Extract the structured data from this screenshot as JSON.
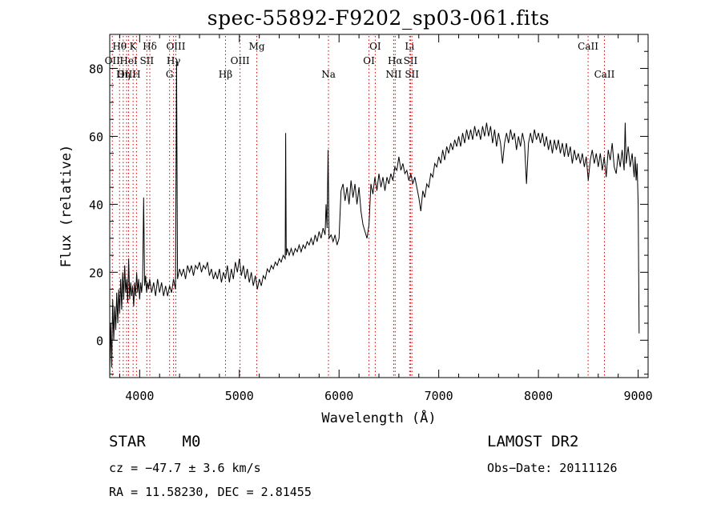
{
  "chart_data": {
    "type": "line",
    "title": "spec-55892-F9202_sp03-061.fits",
    "xlabel": "Wavelength (Å)",
    "ylabel": "Flux (relative)",
    "xlim": [
      3700,
      9100
    ],
    "ylim": [
      -11,
      90
    ],
    "xticks": [
      4000,
      5000,
      6000,
      7000,
      8000,
      9000
    ],
    "yticks": [
      0,
      20,
      40,
      60,
      80
    ],
    "grid": false,
    "line_color": "#000000",
    "marker_color": "#d00000",
    "series": [
      {
        "points": [
          [
            3700,
            -10
          ],
          [
            3710,
            5
          ],
          [
            3720,
            -8
          ],
          [
            3730,
            12
          ],
          [
            3740,
            0
          ],
          [
            3750,
            10
          ],
          [
            3760,
            3
          ],
          [
            3770,
            14
          ],
          [
            3780,
            5
          ],
          [
            3790,
            15
          ],
          [
            3800,
            8
          ],
          [
            3810,
            18
          ],
          [
            3820,
            9
          ],
          [
            3830,
            20
          ],
          [
            3840,
            12
          ],
          [
            3850,
            22
          ],
          [
            3860,
            14
          ],
          [
            3870,
            18
          ],
          [
            3880,
            11
          ],
          [
            3890,
            24
          ],
          [
            3900,
            12
          ],
          [
            3910,
            17
          ],
          [
            3920,
            13
          ],
          [
            3930,
            16
          ],
          [
            3940,
            10
          ],
          [
            3950,
            17
          ],
          [
            3960,
            13
          ],
          [
            3970,
            20
          ],
          [
            3980,
            14
          ],
          [
            3990,
            18
          ],
          [
            4000,
            12
          ],
          [
            4010,
            17
          ],
          [
            4020,
            14
          ],
          [
            4030,
            18
          ],
          [
            4040,
            42
          ],
          [
            4050,
            16
          ],
          [
            4060,
            19
          ],
          [
            4070,
            14
          ],
          [
            4080,
            17
          ],
          [
            4090,
            15
          ],
          [
            4100,
            18
          ],
          [
            4120,
            14
          ],
          [
            4140,
            17
          ],
          [
            4160,
            13
          ],
          [
            4180,
            18
          ],
          [
            4200,
            14
          ],
          [
            4220,
            17
          ],
          [
            4240,
            13
          ],
          [
            4260,
            16
          ],
          [
            4280,
            13
          ],
          [
            4300,
            16
          ],
          [
            4320,
            14
          ],
          [
            4340,
            18
          ],
          [
            4360,
            15
          ],
          [
            4370,
            82
          ],
          [
            4380,
            18
          ],
          [
            4400,
            21
          ],
          [
            4420,
            19
          ],
          [
            4440,
            21
          ],
          [
            4460,
            18
          ],
          [
            4480,
            22
          ],
          [
            4500,
            20
          ],
          [
            4520,
            22
          ],
          [
            4540,
            19
          ],
          [
            4560,
            22
          ],
          [
            4580,
            21
          ],
          [
            4600,
            23
          ],
          [
            4620,
            20
          ],
          [
            4640,
            22
          ],
          [
            4660,
            21
          ],
          [
            4680,
            23
          ],
          [
            4700,
            19
          ],
          [
            4720,
            21
          ],
          [
            4740,
            18
          ],
          [
            4760,
            20
          ],
          [
            4780,
            18
          ],
          [
            4800,
            21
          ],
          [
            4820,
            17
          ],
          [
            4840,
            20
          ],
          [
            4860,
            18
          ],
          [
            4880,
            22
          ],
          [
            4900,
            17
          ],
          [
            4920,
            21
          ],
          [
            4940,
            18
          ],
          [
            4960,
            23
          ],
          [
            4980,
            20
          ],
          [
            5000,
            24
          ],
          [
            5020,
            19
          ],
          [
            5040,
            22
          ],
          [
            5060,
            18
          ],
          [
            5080,
            21
          ],
          [
            5100,
            17
          ],
          [
            5120,
            20
          ],
          [
            5140,
            16
          ],
          [
            5160,
            19
          ],
          [
            5180,
            15
          ],
          [
            5200,
            18
          ],
          [
            5220,
            16
          ],
          [
            5240,
            19
          ],
          [
            5260,
            18
          ],
          [
            5280,
            21
          ],
          [
            5300,
            20
          ],
          [
            5320,
            22
          ],
          [
            5340,
            21
          ],
          [
            5360,
            23
          ],
          [
            5380,
            22
          ],
          [
            5400,
            24
          ],
          [
            5420,
            23
          ],
          [
            5440,
            25
          ],
          [
            5460,
            24
          ],
          [
            5465,
            61
          ],
          [
            5470,
            25
          ],
          [
            5480,
            27
          ],
          [
            5500,
            25
          ],
          [
            5520,
            27
          ],
          [
            5540,
            25
          ],
          [
            5560,
            27
          ],
          [
            5580,
            26
          ],
          [
            5600,
            28
          ],
          [
            5620,
            26
          ],
          [
            5640,
            28
          ],
          [
            5660,
            27
          ],
          [
            5680,
            29
          ],
          [
            5700,
            28
          ],
          [
            5720,
            30
          ],
          [
            5740,
            28
          ],
          [
            5760,
            31
          ],
          [
            5780,
            29
          ],
          [
            5800,
            32
          ],
          [
            5820,
            30
          ],
          [
            5840,
            33
          ],
          [
            5860,
            31
          ],
          [
            5870,
            40
          ],
          [
            5880,
            33
          ],
          [
            5890,
            56
          ],
          [
            5900,
            30
          ],
          [
            5920,
            31
          ],
          [
            5940,
            29
          ],
          [
            5960,
            31
          ],
          [
            5980,
            28
          ],
          [
            6000,
            30
          ],
          [
            6020,
            44
          ],
          [
            6040,
            46
          ],
          [
            6060,
            41
          ],
          [
            6080,
            45
          ],
          [
            6100,
            40
          ],
          [
            6120,
            47
          ],
          [
            6140,
            42
          ],
          [
            6160,
            46
          ],
          [
            6180,
            40
          ],
          [
            6200,
            45
          ],
          [
            6220,
            38
          ],
          [
            6240,
            34
          ],
          [
            6260,
            32
          ],
          [
            6280,
            30
          ],
          [
            6300,
            34
          ],
          [
            6320,
            46
          ],
          [
            6340,
            43
          ],
          [
            6360,
            48
          ],
          [
            6380,
            44
          ],
          [
            6400,
            49
          ],
          [
            6420,
            45
          ],
          [
            6440,
            48
          ],
          [
            6460,
            44
          ],
          [
            6480,
            48
          ],
          [
            6500,
            46
          ],
          [
            6520,
            49
          ],
          [
            6540,
            47
          ],
          [
            6560,
            51
          ],
          [
            6580,
            50
          ],
          [
            6600,
            54
          ],
          [
            6620,
            50
          ],
          [
            6640,
            52
          ],
          [
            6660,
            49
          ],
          [
            6680,
            50
          ],
          [
            6700,
            47
          ],
          [
            6720,
            49
          ],
          [
            6740,
            46
          ],
          [
            6760,
            48
          ],
          [
            6780,
            45
          ],
          [
            6800,
            42
          ],
          [
            6820,
            38
          ],
          [
            6840,
            44
          ],
          [
            6860,
            42
          ],
          [
            6880,
            46
          ],
          [
            6900,
            45
          ],
          [
            6920,
            49
          ],
          [
            6940,
            48
          ],
          [
            6960,
            52
          ],
          [
            6980,
            51
          ],
          [
            7000,
            54
          ],
          [
            7020,
            52
          ],
          [
            7040,
            56
          ],
          [
            7060,
            53
          ],
          [
            7080,
            57
          ],
          [
            7100,
            55
          ],
          [
            7120,
            58
          ],
          [
            7140,
            56
          ],
          [
            7160,
            59
          ],
          [
            7180,
            57
          ],
          [
            7200,
            60
          ],
          [
            7220,
            57
          ],
          [
            7240,
            61
          ],
          [
            7260,
            58
          ],
          [
            7280,
            62
          ],
          [
            7300,
            59
          ],
          [
            7320,
            62
          ],
          [
            7340,
            59
          ],
          [
            7360,
            63
          ],
          [
            7380,
            60
          ],
          [
            7400,
            62
          ],
          [
            7420,
            59
          ],
          [
            7440,
            63
          ],
          [
            7460,
            60
          ],
          [
            7480,
            64
          ],
          [
            7500,
            60
          ],
          [
            7520,
            63
          ],
          [
            7540,
            58
          ],
          [
            7560,
            62
          ],
          [
            7580,
            57
          ],
          [
            7600,
            61
          ],
          [
            7620,
            58
          ],
          [
            7640,
            52
          ],
          [
            7660,
            58
          ],
          [
            7680,
            61
          ],
          [
            7700,
            58
          ],
          [
            7720,
            62
          ],
          [
            7740,
            59
          ],
          [
            7760,
            61
          ],
          [
            7780,
            56
          ],
          [
            7800,
            60
          ],
          [
            7820,
            57
          ],
          [
            7840,
            61
          ],
          [
            7860,
            58
          ],
          [
            7880,
            46
          ],
          [
            7900,
            58
          ],
          [
            7920,
            61
          ],
          [
            7940,
            58
          ],
          [
            7960,
            62
          ],
          [
            7980,
            59
          ],
          [
            8000,
            61
          ],
          [
            8020,
            58
          ],
          [
            8040,
            61
          ],
          [
            8060,
            57
          ],
          [
            8080,
            60
          ],
          [
            8100,
            56
          ],
          [
            8120,
            59
          ],
          [
            8140,
            55
          ],
          [
            8160,
            59
          ],
          [
            8180,
            56
          ],
          [
            8200,
            59
          ],
          [
            8220,
            55
          ],
          [
            8240,
            58
          ],
          [
            8260,
            54
          ],
          [
            8280,
            58
          ],
          [
            8300,
            54
          ],
          [
            8320,
            57
          ],
          [
            8340,
            52
          ],
          [
            8360,
            56
          ],
          [
            8380,
            53
          ],
          [
            8400,
            55
          ],
          [
            8420,
            52
          ],
          [
            8440,
            55
          ],
          [
            8460,
            51
          ],
          [
            8480,
            54
          ],
          [
            8500,
            47
          ],
          [
            8520,
            53
          ],
          [
            8540,
            56
          ],
          [
            8560,
            52
          ],
          [
            8580,
            55
          ],
          [
            8600,
            51
          ],
          [
            8620,
            55
          ],
          [
            8640,
            50
          ],
          [
            8660,
            54
          ],
          [
            8680,
            48
          ],
          [
            8700,
            56
          ],
          [
            8720,
            53
          ],
          [
            8740,
            58
          ],
          [
            8760,
            51
          ],
          [
            8780,
            49
          ],
          [
            8800,
            55
          ],
          [
            8820,
            51
          ],
          [
            8840,
            56
          ],
          [
            8860,
            50
          ],
          [
            8870,
            64
          ],
          [
            8880,
            52
          ],
          [
            8900,
            57
          ],
          [
            8920,
            51
          ],
          [
            8940,
            55
          ],
          [
            8960,
            48
          ],
          [
            8970,
            54
          ],
          [
            8980,
            47
          ],
          [
            8990,
            52
          ],
          [
            9000,
            40
          ],
          [
            9010,
            2
          ]
        ]
      }
    ],
    "line_markers": [
      {
        "label": "Hθ",
        "x": 3798,
        "row": 0
      },
      {
        "label": "OII",
        "x": 3726,
        "row": 1
      },
      {
        "label": "OIII",
        "x": 3869,
        "row": 2
      },
      {
        "label": "K",
        "x": 3934,
        "row": 0
      },
      {
        "label": "HeI",
        "x": 3889,
        "row": 1
      },
      {
        "label": "Hη",
        "x": 3835,
        "row": 2
      },
      {
        "label": "SII",
        "x": 4072,
        "row": 1
      },
      {
        "label": "H",
        "x": 3968,
        "row": 2
      },
      {
        "label": "Hδ",
        "x": 4102,
        "row": 0
      },
      {
        "label": "OIII",
        "x": 4363,
        "row": 0
      },
      {
        "label": "Hγ",
        "x": 4340,
        "row": 1
      },
      {
        "label": "G",
        "x": 4300,
        "row": 2
      },
      {
        "label": "Hβ",
        "x": 4861,
        "row": 2
      },
      {
        "label": "OIII",
        "x": 5007,
        "row": 1
      },
      {
        "label": "Mg",
        "x": 5175,
        "row": 0
      },
      {
        "label": "Na",
        "x": 5894,
        "row": 2
      },
      {
        "label": "OI",
        "x": 6363,
        "row": 0
      },
      {
        "label": "OI",
        "x": 6300,
        "row": 1
      },
      {
        "label": "Hα",
        "x": 6563,
        "row": 1
      },
      {
        "label": "NII",
        "x": 6548,
        "row": 2
      },
      {
        "label": "Li",
        "x": 6708,
        "row": 0
      },
      {
        "label": "SII",
        "x": 6717,
        "row": 1
      },
      {
        "label": "SII",
        "x": 6731,
        "row": 2
      },
      {
        "label": "CaII",
        "x": 8498,
        "row": 0
      },
      {
        "label": "CaII",
        "x": 8662,
        "row": 2
      }
    ]
  },
  "info": {
    "object_class": "STAR",
    "subclass": "M0",
    "survey": "LAMOST DR2",
    "redshift_text": "cz = −47.7 ± 3.6 km/s",
    "obs_date_text": "Obs−Date: 20111126",
    "coords_text": "RA =  11.58230, DEC =    2.81455"
  }
}
